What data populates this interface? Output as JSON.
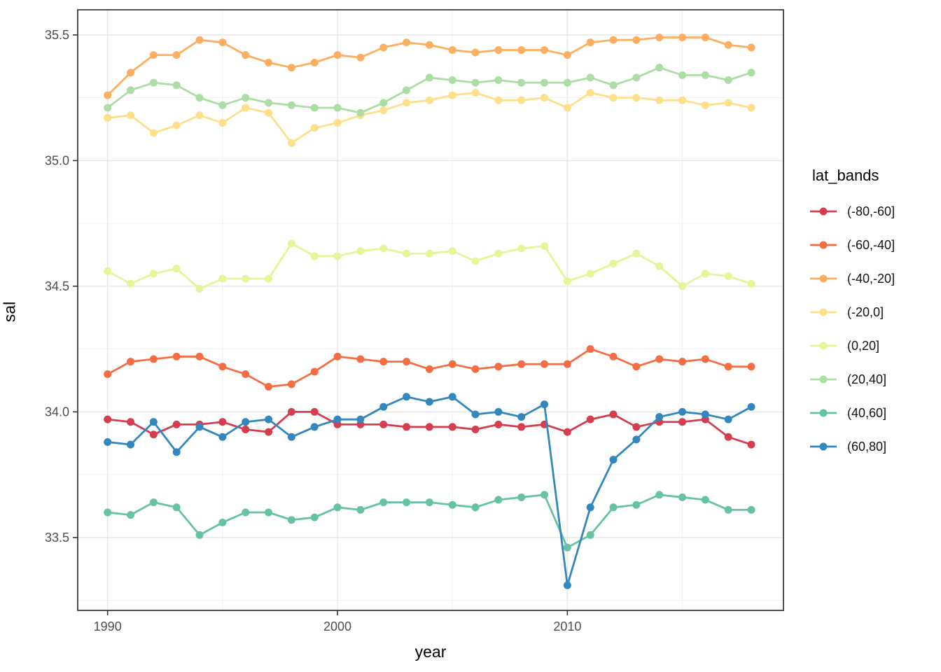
{
  "chart_data": {
    "type": "line",
    "title": "",
    "xlabel": "year",
    "ylabel": "sal",
    "legend_title": "lat_bands",
    "legend_position": "right",
    "grid": true,
    "xlim": [
      1988.7,
      2019.4
    ],
    "ylim": [
      33.21,
      35.6
    ],
    "x_ticks": [
      1990,
      2000,
      2010
    ],
    "x_tick_labels": [
      "1990",
      "2000",
      "2010"
    ],
    "x_minor": [
      1995,
      2005,
      2015
    ],
    "y_ticks": [
      33.5,
      34.0,
      34.5,
      35.0,
      35.5
    ],
    "y_tick_labels": [
      "33.5",
      "34.0",
      "34.5",
      "35.0",
      "35.5"
    ],
    "y_minor": [
      33.25,
      33.75,
      34.25,
      34.75,
      35.25
    ],
    "x": [
      1990,
      1991,
      1992,
      1993,
      1994,
      1995,
      1996,
      1997,
      1998,
      1999,
      2000,
      2001,
      2002,
      2003,
      2004,
      2005,
      2006,
      2007,
      2008,
      2009,
      2010,
      2011,
      2012,
      2013,
      2014,
      2015,
      2016,
      2017,
      2018
    ],
    "series": [
      {
        "name": "(-80,-60]",
        "color": "#D53E4F",
        "values": [
          33.97,
          33.96,
          33.91,
          33.95,
          33.95,
          33.96,
          33.93,
          33.92,
          34.0,
          34.0,
          33.95,
          33.95,
          33.95,
          33.94,
          33.94,
          33.94,
          33.93,
          33.95,
          33.94,
          33.95,
          33.92,
          33.97,
          33.99,
          33.94,
          33.96,
          33.96,
          33.97,
          33.9,
          33.87
        ]
      },
      {
        "name": "(-60,-40]",
        "color": "#F46D43",
        "values": [
          34.15,
          34.2,
          34.21,
          34.22,
          34.22,
          34.18,
          34.15,
          34.1,
          34.11,
          34.16,
          34.22,
          34.21,
          34.2,
          34.2,
          34.17,
          34.19,
          34.17,
          34.18,
          34.19,
          34.19,
          34.19,
          34.25,
          34.22,
          34.18,
          34.21,
          34.2,
          34.21,
          34.18,
          34.18
        ]
      },
      {
        "name": "(-40,-20]",
        "color": "#FDAE61",
        "values": [
          35.26,
          35.35,
          35.42,
          35.42,
          35.48,
          35.47,
          35.42,
          35.39,
          35.37,
          35.39,
          35.42,
          35.41,
          35.45,
          35.47,
          35.46,
          35.44,
          35.43,
          35.44,
          35.44,
          35.44,
          35.42,
          35.47,
          35.48,
          35.48,
          35.49,
          35.49,
          35.49,
          35.46,
          35.45
        ]
      },
      {
        "name": "(-20,0]",
        "color": "#FEE08B",
        "values": [
          35.17,
          35.18,
          35.11,
          35.14,
          35.18,
          35.15,
          35.21,
          35.19,
          35.07,
          35.13,
          35.15,
          35.18,
          35.2,
          35.23,
          35.24,
          35.26,
          35.27,
          35.24,
          35.24,
          35.25,
          35.21,
          35.27,
          35.25,
          35.25,
          35.24,
          35.24,
          35.22,
          35.23,
          35.21
        ]
      },
      {
        "name": "(0,20]",
        "color": "#E6F598",
        "values": [
          34.56,
          34.51,
          34.55,
          34.57,
          34.49,
          34.53,
          34.53,
          34.53,
          34.67,
          34.62,
          34.62,
          34.64,
          34.65,
          34.63,
          34.63,
          34.64,
          34.6,
          34.63,
          34.65,
          34.66,
          34.52,
          34.55,
          34.59,
          34.63,
          34.58,
          34.5,
          34.55,
          34.54,
          34.51
        ]
      },
      {
        "name": "(20,40]",
        "color": "#ABDDA4",
        "values": [
          35.21,
          35.28,
          35.31,
          35.3,
          35.25,
          35.22,
          35.25,
          35.23,
          35.22,
          35.21,
          35.21,
          35.19,
          35.23,
          35.28,
          35.33,
          35.32,
          35.31,
          35.32,
          35.31,
          35.31,
          35.31,
          35.33,
          35.3,
          35.33,
          35.37,
          35.34,
          35.34,
          35.32,
          35.35
        ]
      },
      {
        "name": "(40,60]",
        "color": "#66C2A5",
        "values": [
          33.6,
          33.59,
          33.64,
          33.62,
          33.51,
          33.56,
          33.6,
          33.6,
          33.57,
          33.58,
          33.62,
          33.61,
          33.64,
          33.64,
          33.64,
          33.63,
          33.62,
          33.65,
          33.66,
          33.67,
          33.46,
          33.51,
          33.62,
          33.63,
          33.67,
          33.66,
          33.65,
          33.61,
          33.61
        ]
      },
      {
        "name": "(60,80]",
        "color": "#3288BD",
        "values": [
          33.88,
          33.87,
          33.96,
          33.84,
          33.94,
          33.9,
          33.96,
          33.97,
          33.9,
          33.94,
          33.97,
          33.97,
          34.02,
          34.06,
          34.04,
          34.06,
          33.99,
          34.0,
          33.98,
          34.03,
          33.31,
          33.62,
          33.81,
          33.89,
          33.98,
          34.0,
          33.99,
          33.97,
          34.02
        ]
      }
    ],
    "style": {
      "panel_bg": "#FFFFFF",
      "grid_major": "#E6E6E6",
      "grid_minor": "#F1F1F1",
      "panel_border": "#333333",
      "tick_color": "#333333",
      "tick_label_color": "#4D4D4D",
      "point_radius": 5.5,
      "line_width": 2.8
    }
  }
}
